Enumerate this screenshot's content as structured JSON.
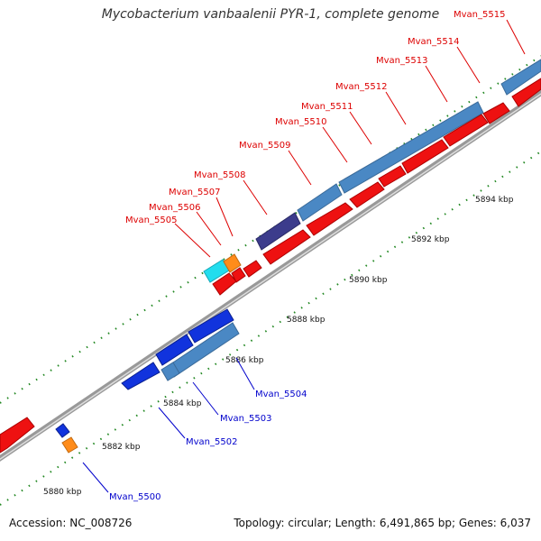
{
  "title": "Mycobacterium vanbaalenii PYR-1, complete genome",
  "footer": {
    "accession": "Accession: NC_008726",
    "summary": "Topology: circular; Length: 6,491,865 bp; Genes: 6,037"
  },
  "colors": {
    "forward_label": "#dd0000",
    "reverse_label": "#0000cc",
    "red_gene": "#ee1111",
    "blue_gene": "#1133dd",
    "steel_gene": "#4a88c4",
    "cyan_gene": "#22ddee",
    "orange_gene": "#ff8c1a",
    "purple_gene": "#3c3c8c",
    "tick_green": "#228822",
    "backbone": "#888888"
  },
  "scale_labels": [
    "5880 kbp",
    "5882 kbp",
    "5884 kbp",
    "5886 kbp",
    "5888 kbp",
    "5890 kbp",
    "5892 kbp",
    "5894 kbp"
  ],
  "forward_labels": [
    "Mvan_5505",
    "Mvan_5506",
    "Mvan_5507",
    "Mvan_5508",
    "Mvan_5509",
    "Mvan_5510",
    "Mvan_5511",
    "Mvan_5512",
    "Mvan_5513",
    "Mvan_5514",
    "Mvan_5515"
  ],
  "reverse_labels": [
    "Mvan_5500",
    "Mvan_5502",
    "Mvan_5503",
    "Mvan_5504"
  ]
}
